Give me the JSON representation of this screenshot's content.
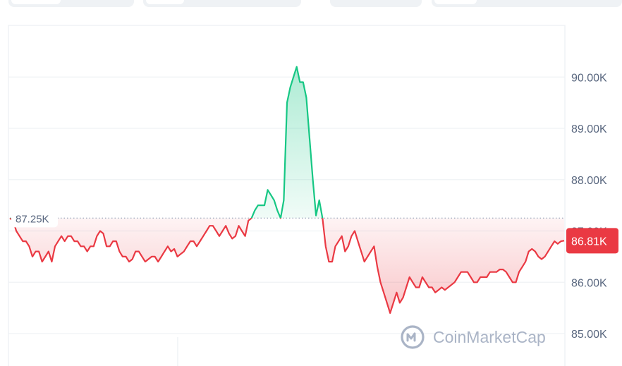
{
  "colors": {
    "up": "#16c784",
    "down": "#ea3943",
    "grid": "#eff2f5",
    "tick_text": "#58667e",
    "reference": "#a6b0c3"
  },
  "watermark": {
    "text": "CoinMarketCap",
    "icon": "coinmarketcap-logo-icon"
  },
  "chart_data": {
    "type": "area",
    "title": "",
    "xlabel": "",
    "ylabel": "",
    "ylim": [
      84.8,
      91.0
    ],
    "y_unit": "K",
    "yticks": [
      "85.00K",
      "86.00K",
      "87.00K",
      "88.00K",
      "89.00K",
      "90.00K"
    ],
    "reference_value": 87.25,
    "reference_label": "87.25K",
    "current_value": 86.81,
    "current_label": "86.81K",
    "grid": true,
    "legend": "none",
    "series": [
      {
        "values": [
          87.25,
          87.2,
          87.0,
          86.9,
          86.8,
          86.8,
          86.7,
          86.5,
          86.6,
          86.6,
          86.4,
          86.5,
          86.6,
          86.4,
          86.7,
          86.8,
          86.9,
          86.8,
          86.9,
          86.9,
          86.8,
          86.8,
          86.7,
          86.7,
          86.6,
          86.7,
          86.7,
          86.9,
          87.0,
          86.95,
          86.7,
          86.7,
          86.8,
          86.8,
          86.6,
          86.5,
          86.5,
          86.4,
          86.45,
          86.6,
          86.6,
          86.5,
          86.4,
          86.45,
          86.5,
          86.5,
          86.4,
          86.5,
          86.6,
          86.7,
          86.6,
          86.65,
          86.5,
          86.55,
          86.6,
          86.7,
          86.8,
          86.8,
          86.7,
          86.8,
          86.9,
          87.0,
          87.1,
          87.1,
          87.0,
          86.9,
          87.0,
          87.1,
          86.95,
          86.85,
          86.9,
          87.1,
          87.0,
          86.9,
          87.2,
          87.25,
          87.4,
          87.5,
          87.5,
          87.5,
          87.8,
          87.7,
          87.6,
          87.4,
          87.25,
          87.6,
          89.5,
          89.8,
          90.0,
          90.2,
          89.9,
          89.9,
          89.6,
          88.8,
          88.0,
          87.3,
          87.6,
          87.25,
          86.7,
          86.4,
          86.4,
          86.7,
          86.8,
          86.9,
          86.6,
          86.7,
          86.9,
          87.0,
          86.8,
          86.6,
          86.4,
          86.5,
          86.6,
          86.7,
          86.3,
          86.0,
          85.8,
          85.6,
          85.4,
          85.6,
          85.8,
          85.6,
          85.7,
          85.9,
          86.1,
          86.0,
          85.9,
          85.9,
          86.1,
          86.0,
          85.9,
          85.9,
          85.8,
          85.85,
          85.9,
          85.85,
          85.9,
          85.95,
          86.0,
          86.1,
          86.2,
          86.2,
          86.2,
          86.1,
          86.0,
          86.0,
          86.1,
          86.1,
          86.1,
          86.2,
          86.2,
          86.2,
          86.25,
          86.25,
          86.2,
          86.1,
          86.0,
          86.0,
          86.2,
          86.3,
          86.4,
          86.6,
          86.65,
          86.6,
          86.5,
          86.45,
          86.5,
          86.6,
          86.7,
          86.8,
          86.75,
          86.8,
          86.81
        ]
      }
    ]
  }
}
